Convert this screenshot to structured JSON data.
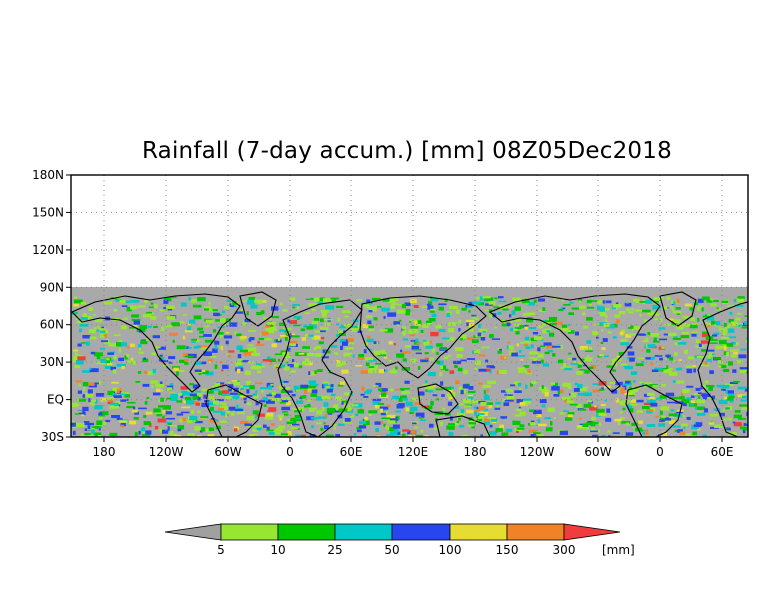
{
  "title": "Rainfall (7-day accum.) [mm] 08Z05Dec2018",
  "map": {
    "lat_labels": [
      "180N",
      "150N",
      "120N",
      "90N",
      "60N",
      "30N",
      "EQ",
      "30S"
    ],
    "lon_labels": [
      "180",
      "120W",
      "60W",
      "0",
      "60E",
      "120E",
      "180",
      "120W",
      "60W",
      "0",
      "60E"
    ],
    "no_data_color": "#a9a9a9",
    "grid": "dotted"
  },
  "colorbar": {
    "unit": "[mm]",
    "thresholds": [
      "5",
      "10",
      "25",
      "50",
      "100",
      "150",
      "300"
    ],
    "colors": [
      "#a0a0a0",
      "#96e632",
      "#00c800",
      "#00c8c8",
      "#2846f0",
      "#e6dc32",
      "#f08228",
      "#f03c3c"
    ]
  }
}
